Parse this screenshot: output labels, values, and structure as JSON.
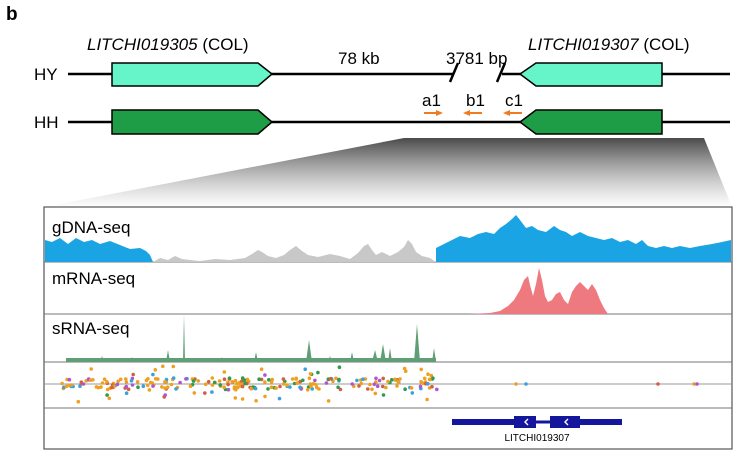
{
  "panel_label": "b",
  "genes": {
    "left": {
      "name": "LITCHI019305",
      "suffix": "(COL)"
    },
    "right": {
      "name": "LITCHI019307",
      "suffix": "(COL)"
    }
  },
  "distances": {
    "left_gap": "78 kb",
    "right_gap": "3781 bp"
  },
  "rows": {
    "hy": "HY",
    "hh": "HH"
  },
  "primers": [
    "a1",
    "b1",
    "c1"
  ],
  "tracks": {
    "gdna": "gDNA-seq",
    "mrna": "mRNA-seq",
    "srna": "sRNA-seq"
  },
  "annotation": {
    "gene_label": "LITCHI019307"
  },
  "colors": {
    "hy_gene": "#66f5c9",
    "hh_gene": "#1e9c46",
    "primer": "#f07c22",
    "gdna_blue": "#1aa4e4",
    "gdna_grey": "#c8c8c8",
    "mrna": "#ee7a80",
    "srna": "#5f9e76",
    "gene_model": "#14179c"
  }
}
